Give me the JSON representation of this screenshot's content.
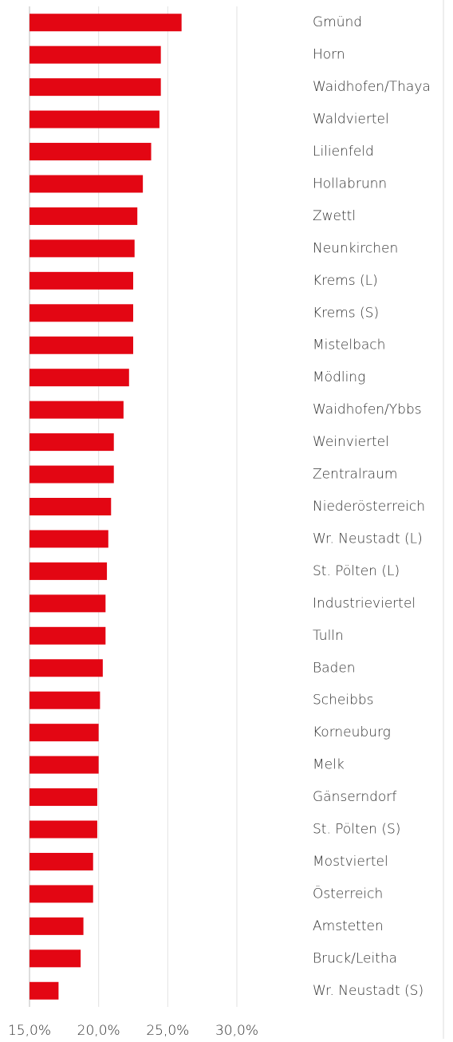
{
  "chart_data": {
    "type": "barh",
    "categories": [
      "Gmünd",
      "Horn",
      "Waidhofen/Thaya",
      "Waldviertel",
      "Lilienfeld",
      "Hollabrunn",
      "Zwettl",
      "Neunkirchen",
      "Krems (L)",
      "Krems (S)",
      "Mistelbach",
      "Mödling",
      "Waidhofen/Ybbs",
      "Weinviertel",
      "Zentralraum",
      "Niederösterreich",
      "Wr. Neustadt (L)",
      "St. Pölten (L)",
      "Industrieviertel",
      "Tulln",
      "Baden",
      "Scheibbs",
      "Korneuburg",
      "Melk",
      "Gänserndorf",
      "St. Pölten (S)",
      "Mostviertel",
      "Österreich",
      "Amstetten",
      "Bruck/Leitha",
      "Wr. Neustadt (S)"
    ],
    "values": [
      26.0,
      24.5,
      24.5,
      24.4,
      23.8,
      23.2,
      22.8,
      22.6,
      22.5,
      22.5,
      22.5,
      22.2,
      21.8,
      21.1,
      21.1,
      20.9,
      20.7,
      20.6,
      20.5,
      20.5,
      20.3,
      20.1,
      20.0,
      20.0,
      19.9,
      19.9,
      19.6,
      19.6,
      18.9,
      18.7,
      17.1
    ],
    "color": "#e30613",
    "xlim": [
      15,
      30
    ],
    "xticks": [
      {
        "value": 15,
        "label": "15,0%"
      },
      {
        "value": 20,
        "label": "20,0%"
      },
      {
        "value": 25,
        "label": "25,0%"
      },
      {
        "value": 30,
        "label": "30,0%"
      }
    ],
    "grid": true
  }
}
